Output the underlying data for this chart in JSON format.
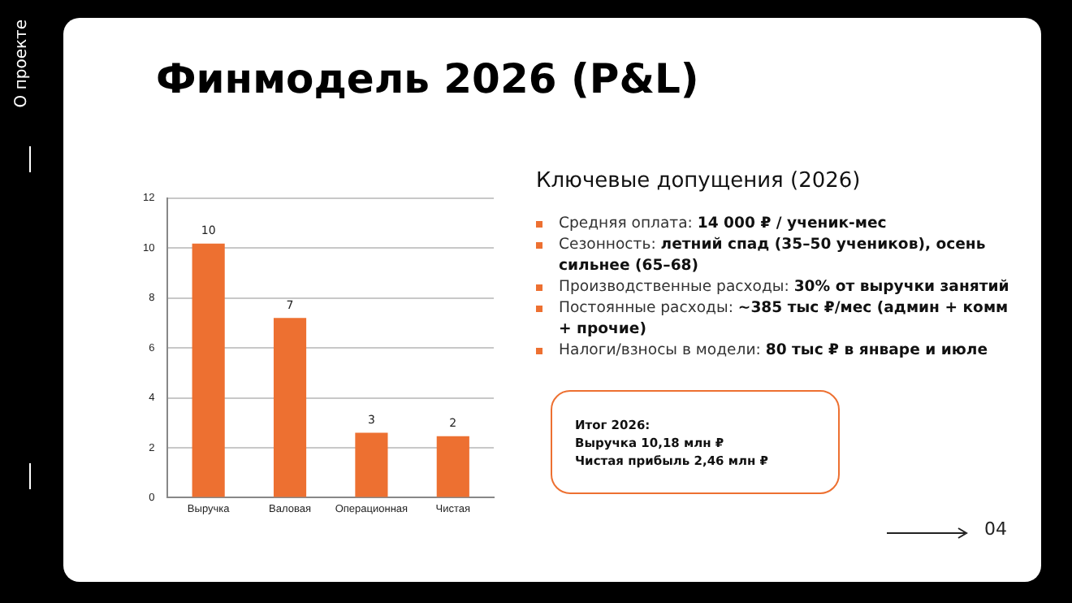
{
  "chart_data": {
    "type": "bar",
    "title": "Финмодель 2026 (P&L)",
    "categories": [
      "Выручка",
      "Валовая",
      "Операционная",
      "Чистая"
    ],
    "values": [
      10.18,
      7.2,
      2.6,
      2.46
    ],
    "value_labels": [
      "10",
      "7",
      "3",
      "2"
    ],
    "color": "#ed7031",
    "ylim": [
      0,
      12
    ],
    "yticks": [
      0,
      2,
      4,
      6,
      8,
      10,
      12
    ],
    "grid": "y",
    "legend": false,
    "annotations": [
      "О проекте",
      "Ключевые допущения (2026)",
      "Средняя оплата: 14 000 ₽ / ученик-мес",
      "Сезонность: летний спад (35–50 учеников), осень сильнее (65–68)",
      "Производственные расходы: 30% от выручки занятий",
      "Постоянные расходы: ~385 тыс ₽/мес (админ + комм + прочие)",
      "Налоги/взносы в модели: 80 тыс ₽ в январе и июле",
      "Итог 2026:\nВыручка 10,18 млн ₽\nЧистая прибыль 2,46 млн ₽",
      "04"
    ]
  }
}
